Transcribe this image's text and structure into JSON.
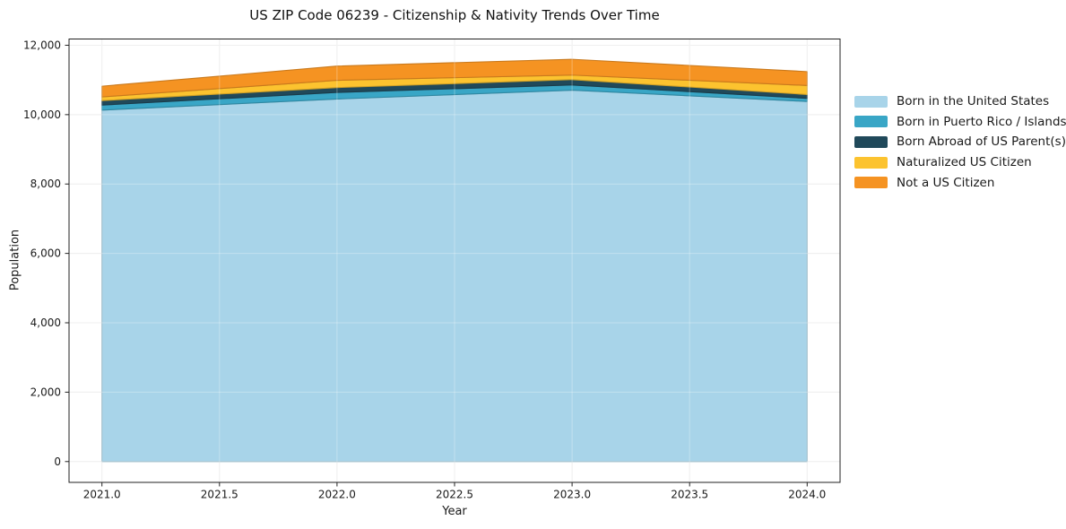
{
  "figure": {
    "background": "#ffffff",
    "spine_color": "#222222",
    "grid_color_under": "#e9e9e9",
    "grid_color_over": "rgba(255,255,255,0.30)",
    "tick_color": "#222222",
    "tick_label_color": "#1a1a1a"
  },
  "chart_data": {
    "type": "area",
    "stacked": true,
    "title": "US ZIP Code 06239 - Citizenship & Nativity Trends Over Time",
    "xlabel": "Year",
    "ylabel": "Population",
    "x": [
      2021,
      2022,
      2023,
      2024
    ],
    "series": [
      {
        "name": "Born in the United States",
        "color": "#a8d4e9",
        "values": [
          10130,
          10450,
          10705,
          10380
        ]
      },
      {
        "name": "Born in Puerto Rico / Islands",
        "color": "#39a6c6",
        "values": [
          145,
          190,
          150,
          90
        ]
      },
      {
        "name": "Born Abroad of US Parent(s)",
        "color": "#20495a",
        "values": [
          130,
          140,
          155,
          110
        ]
      },
      {
        "name": "Naturalized US Citizen",
        "color": "#fcc32f",
        "values": [
          105,
          210,
          130,
          260
        ]
      },
      {
        "name": "Not a US Citizen",
        "color": "#f59322",
        "values": [
          310,
          410,
          455,
          400
        ]
      }
    ],
    "totals": [
      10820,
      11400,
      11595,
      11240
    ],
    "xlim": [
      2020.86,
      2024.14
    ],
    "ylim": [
      -600,
      12180
    ],
    "x_ticks": [
      {
        "v": 2021.0,
        "label": "2021.0"
      },
      {
        "v": 2021.5,
        "label": "2021.5"
      },
      {
        "v": 2022.0,
        "label": "2022.0"
      },
      {
        "v": 2022.5,
        "label": "2022.5"
      },
      {
        "v": 2023.0,
        "label": "2023.0"
      },
      {
        "v": 2023.5,
        "label": "2023.5"
      },
      {
        "v": 2024.0,
        "label": "2024.0"
      }
    ],
    "y_ticks": [
      {
        "v": 0,
        "label": "0"
      },
      {
        "v": 2000,
        "label": "2,000"
      },
      {
        "v": 4000,
        "label": "4,000"
      },
      {
        "v": 6000,
        "label": "6,000"
      },
      {
        "v": 8000,
        "label": "8,000"
      },
      {
        "v": 10000,
        "label": "10,000"
      },
      {
        "v": 12000,
        "label": "12,000"
      }
    ],
    "grid": true,
    "legend_position": "right"
  }
}
